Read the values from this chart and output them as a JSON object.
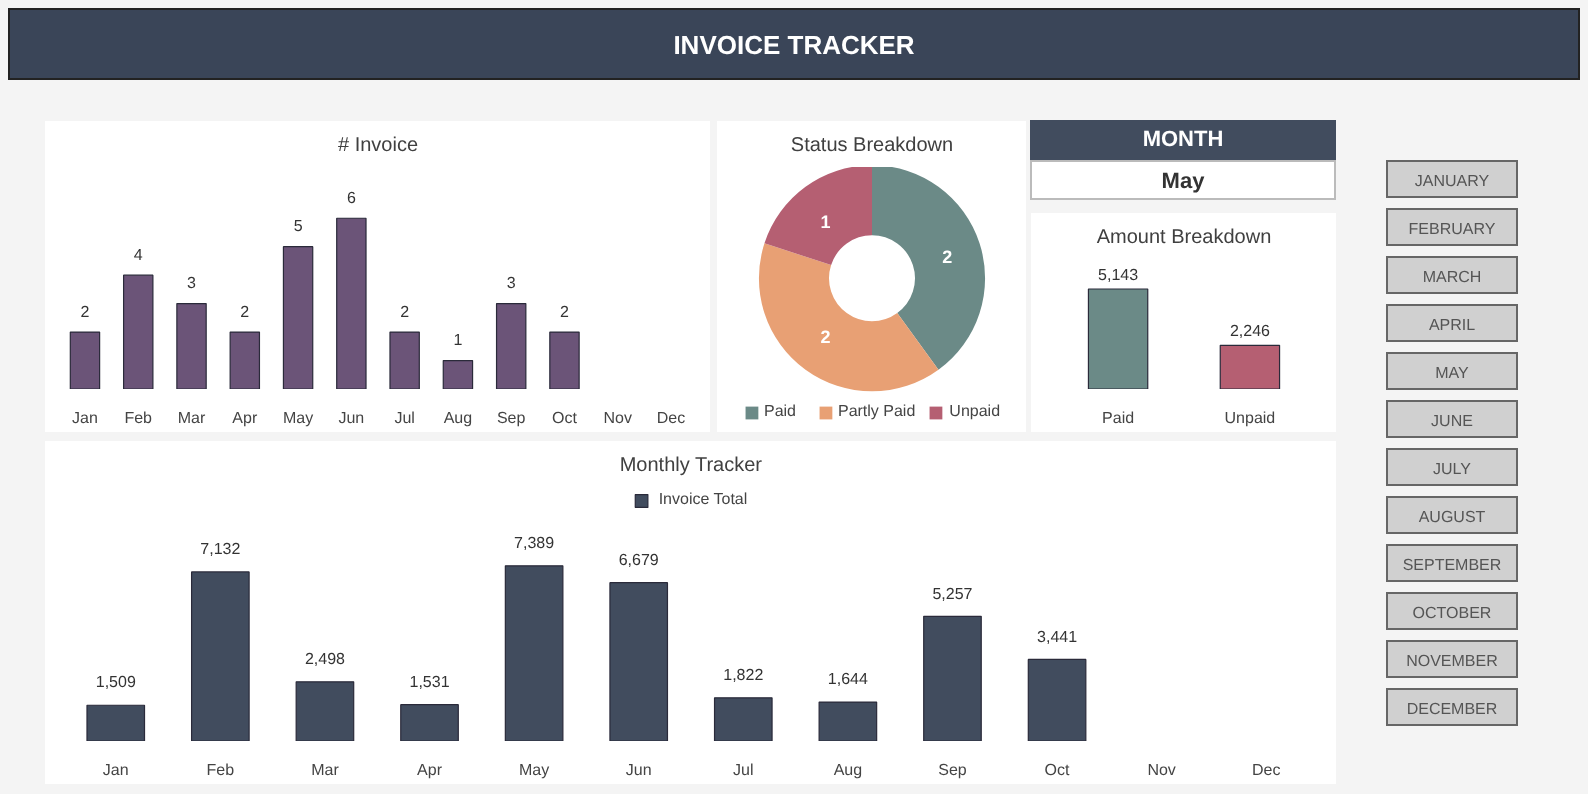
{
  "chart_data": [
    {
      "type": "other",
      "title": "INVOICE TRACKER"
    },
    {
      "type": "bar",
      "title": "# Invoice",
      "categories": [
        "Jan",
        "Feb",
        "Mar",
        "Apr",
        "May",
        "Jun",
        "Jul",
        "Aug",
        "Sep",
        "Oct",
        "Nov",
        "Dec"
      ],
      "values": [
        2,
        4,
        3,
        2,
        5,
        6,
        2,
        1,
        3,
        2,
        null,
        null
      ],
      "color": "#6b5478",
      "data_labels": true
    },
    {
      "type": "donut",
      "title": "Status Breakdown",
      "categories": [
        "Paid",
        "Partly Paid",
        "Unpaid"
      ],
      "values": [
        2,
        2,
        1
      ],
      "colors": [
        "#6b8a87",
        "#e8a074",
        "#b55f72"
      ],
      "data_labels": true,
      "legend": "bottom"
    },
    {
      "type": "other",
      "title": "MONTH",
      "annotations": [
        "May"
      ]
    },
    {
      "type": "bar",
      "title": "Amount Breakdown",
      "categories": [
        "Paid",
        "Unpaid"
      ],
      "values": [
        5143,
        2246
      ],
      "value_labels": [
        "5,143",
        "2,246"
      ],
      "colors": [
        "#6b8a87",
        "#b55f72"
      ]
    },
    {
      "type": "bar",
      "title": "Monthly Tracker",
      "categories": [
        "Jan",
        "Feb",
        "Mar",
        "Apr",
        "May",
        "Jun",
        "Jul",
        "Aug",
        "Sep",
        "Oct",
        "Nov",
        "Dec"
      ],
      "series": [
        {
          "name": "Invoice Total",
          "color": "#414c5e",
          "values": [
            1509,
            7132,
            2498,
            1531,
            7389,
            6679,
            1822,
            1644,
            5257,
            3441,
            null,
            null
          ],
          "value_labels": [
            "1,509",
            "7,132",
            "2,498",
            "1,531",
            "7,389",
            "6,679",
            "1,822",
            "1,644",
            "5,257",
            "3,441",
            null,
            null
          ]
        }
      ],
      "legend": "top"
    },
    {
      "type": "other",
      "annotations": [
        "JANUARY",
        "FEBRUARY",
        "MARCH",
        "APRIL",
        "MAY",
        "JUNE",
        "JULY",
        "AUGUST",
        "SEPTEMBER",
        "OCTOBER",
        "NOVEMBER",
        "DECEMBER"
      ]
    }
  ]
}
